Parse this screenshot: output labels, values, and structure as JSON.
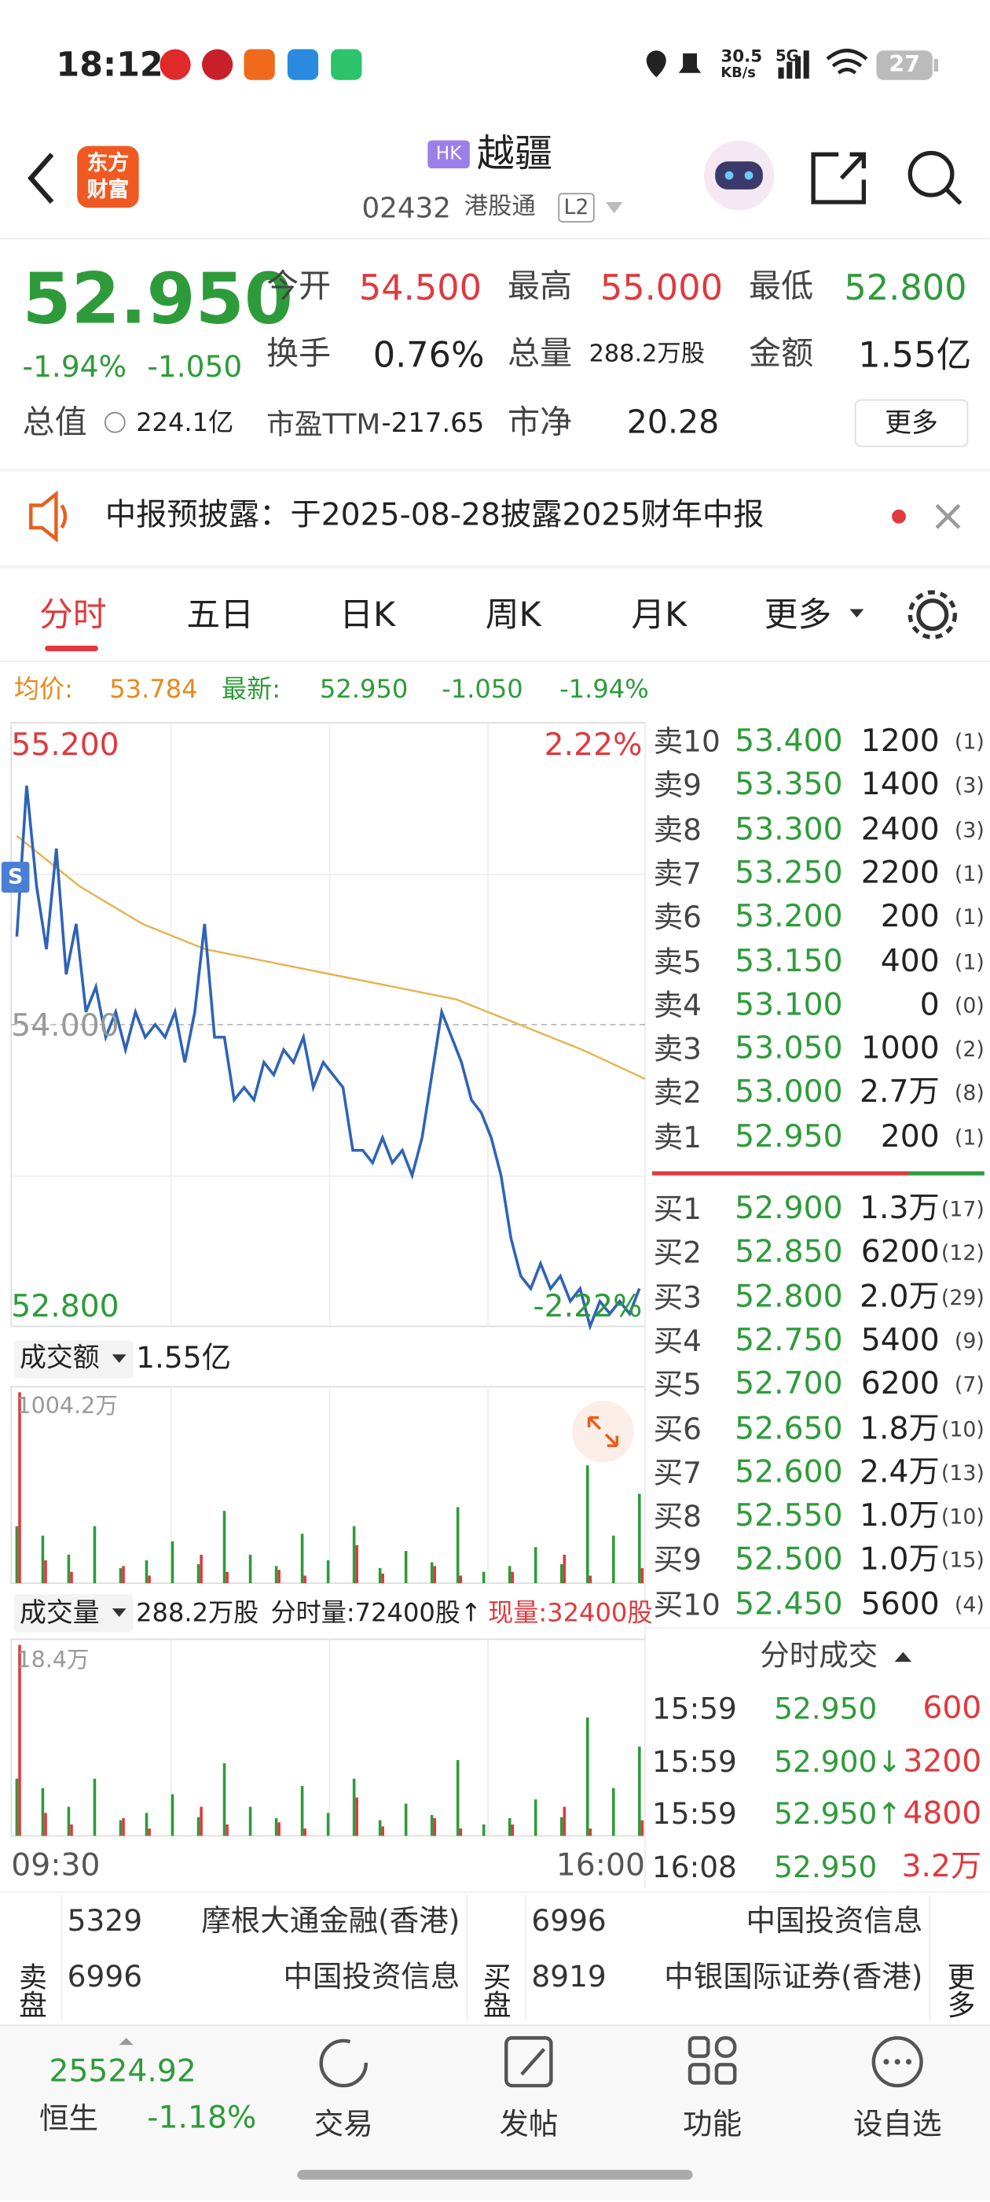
{
  "status_bar": {
    "time": "18:12",
    "net_speed": "30.5",
    "net_unit": "KB/s",
    "signal": "5G",
    "battery": "27"
  },
  "header": {
    "logo": "东方财富",
    "market": "HK",
    "name": "越疆",
    "code": "02432",
    "tags": [
      "港股通",
      "L2"
    ]
  },
  "quote": {
    "price": "52.950",
    "change_pct": "-1.94%",
    "change": "-1.050",
    "fields": [
      {
        "label": "今开",
        "value": "54.500"
      },
      {
        "label": "最高",
        "value": "55.000"
      },
      {
        "label": "最低",
        "value": "52.800"
      },
      {
        "label": "换手",
        "value": "0.76%"
      },
      {
        "label": "总量",
        "value": "288.2万股"
      },
      {
        "label": "金额",
        "value": "1.55亿"
      },
      {
        "label": "总值",
        "value": "224.1亿"
      },
      {
        "label": "市盈TTM",
        "value": "-217.65"
      },
      {
        "label": "市净",
        "value": "20.28"
      }
    ],
    "more": "更多"
  },
  "notice": "中报预披露：于2025-08-28披露2025财年中报",
  "tabs": [
    "分时",
    "五日",
    "日K",
    "周K",
    "月K",
    "更多"
  ],
  "summary": {
    "avg_label": "均价:",
    "avg": "53.784",
    "latest_label": "最新:",
    "latest": "52.950",
    "change": "-1.050",
    "change_pct": "-1.94%"
  },
  "chart": {
    "type": "line",
    "ylim": [
      52.8,
      55.2
    ],
    "yticks": [
      {
        "value": 55.2,
        "label": "55.200"
      },
      {
        "value": 54,
        "label": "54.000"
      },
      {
        "value": 52.8,
        "label": "52.800"
      }
    ],
    "pct_labels": [
      "2.22%",
      "-2.22%"
    ],
    "x_labels": [
      "09:30",
      "16:00"
    ],
    "marker": "S",
    "series": [
      {
        "color": "#2f63b8",
        "values": [
          54.35,
          54.95,
          54.55,
          54.3,
          54.7,
          54.2,
          54.4,
          54.05,
          54.15,
          53.95,
          54.05,
          53.9,
          54.05,
          53.95,
          54.0,
          53.95,
          54.05,
          53.85,
          54.05,
          54.4,
          53.95,
          53.95,
          53.7,
          53.75,
          53.7,
          53.85,
          53.8,
          53.9,
          53.85,
          53.95,
          53.75,
          53.85,
          53.8,
          53.75,
          53.5,
          53.5,
          53.45,
          53.55,
          53.45,
          53.5,
          53.4,
          53.55,
          53.8,
          54.05,
          53.95,
          53.85,
          53.7,
          53.65,
          53.55,
          53.4,
          53.15,
          53.0,
          52.95,
          53.05,
          52.95,
          53.0,
          52.9,
          52.95,
          52.8,
          52.9,
          52.85,
          52.9,
          52.85,
          52.95
        ]
      },
      {
        "color": "#e8b04a",
        "values": [
          54.75,
          54.55,
          54.4,
          54.3,
          54.25,
          54.2,
          54.15,
          54.1,
          54.0,
          53.9,
          53.784
        ]
      }
    ]
  },
  "amount_panel": {
    "selector": "成交额",
    "total": "1.55亿",
    "max_label": "1004.2万",
    "ylim": [
      0,
      1004.2
    ],
    "rise_color": "#e0393e",
    "fall_color": "#2e9b3a",
    "rise_values": [
      1004.2,
      120,
      60,
      0,
      90,
      40,
      0,
      150,
      60,
      0,
      70,
      40,
      0,
      200,
      50,
      0,
      90,
      40,
      0,
      60,
      0,
      150,
      40,
      0,
      80
    ],
    "fall_values": [
      300,
      250,
      150,
      300,
      80,
      120,
      220,
      100,
      380,
      150,
      90,
      260,
      120,
      300,
      80,
      170,
      110,
      400,
      60,
      90,
      190,
      100,
      620,
      250,
      470
    ]
  },
  "volume_panel": {
    "selector": "成交量",
    "total": "288.2万股",
    "period_volume": "分时量:72400股↑",
    "current_volume": "现量:32400股",
    "max_label": "18.4万",
    "ylim": [
      0,
      18.4
    ],
    "rise_values": [
      18.4,
      2.2,
      1.1,
      0,
      1.7,
      0.7,
      0,
      2.8,
      1.1,
      0,
      1.3,
      0.7,
      0,
      3.7,
      0.9,
      0,
      1.7,
      0.7,
      0,
      1.1,
      0,
      2.8,
      0.7,
      0,
      1.5
    ],
    "fall_values": [
      5.5,
      4.6,
      2.8,
      5.5,
      1.5,
      2.2,
      4.0,
      1.8,
      7.0,
      2.8,
      1.7,
      4.8,
      2.2,
      5.5,
      1.5,
      3.1,
      2.0,
      7.3,
      1.1,
      1.7,
      3.5,
      1.8,
      11.4,
      4.6,
      8.6
    ]
  },
  "order_book": {
    "sells": [
      [
        "卖10",
        "53.400",
        "1200",
        "(1)"
      ],
      [
        "卖9",
        "53.350",
        "1400",
        "(3)"
      ],
      [
        "卖8",
        "53.300",
        "2400",
        "(3)"
      ],
      [
        "卖7",
        "53.250",
        "2200",
        "(1)"
      ],
      [
        "卖6",
        "53.200",
        "200",
        "(1)"
      ],
      [
        "卖5",
        "53.150",
        "400",
        "(1)"
      ],
      [
        "卖4",
        "53.100",
        "0",
        "(0)"
      ],
      [
        "卖3",
        "53.050",
        "1000",
        "(2)"
      ],
      [
        "卖2",
        "53.000",
        "2.7万",
        "(8)"
      ],
      [
        "卖1",
        "52.950",
        "200",
        "(1)"
      ]
    ],
    "buys": [
      [
        "买1",
        "52.900",
        "1.3万",
        "(17)"
      ],
      [
        "买2",
        "52.850",
        "6200",
        "(12)"
      ],
      [
        "买3",
        "52.800",
        "2.0万",
        "(29)"
      ],
      [
        "买4",
        "52.750",
        "5400",
        "(9)"
      ],
      [
        "买5",
        "52.700",
        "6200",
        "(7)"
      ],
      [
        "买6",
        "52.650",
        "1.8万",
        "(10)"
      ],
      [
        "买7",
        "52.600",
        "2.4万",
        "(13)"
      ],
      [
        "买8",
        "52.550",
        "1.0万",
        "(10)"
      ],
      [
        "买9",
        "52.500",
        "1.0万",
        "(15)"
      ],
      [
        "买10",
        "52.450",
        "5600",
        "(4)"
      ]
    ]
  },
  "trades": {
    "title": "分时成交",
    "rows": [
      [
        "15:59",
        "52.950",
        "600"
      ],
      [
        "15:59",
        "52.900↓",
        "3200"
      ],
      [
        "15:59",
        "52.950↑",
        "4800"
      ],
      [
        "16:08",
        "52.950",
        "3.2万"
      ]
    ]
  },
  "brokers": {
    "sell_label": "卖盘",
    "buy_label": "买盘",
    "more": "更多",
    "sell_rows": [
      [
        "5329",
        "摩根大通金融(香港)"
      ],
      [
        "6996",
        "中国投资信息"
      ]
    ],
    "buy_rows": [
      [
        "6996",
        "中国投资信息"
      ],
      [
        "8919",
        "中银国际证券(香港)"
      ]
    ]
  },
  "bottom_nav": {
    "index_value": "25524.92",
    "index_name": "恒生",
    "index_change": "-1.18%",
    "items": [
      "交易",
      "发帖",
      "功能",
      "设自选"
    ]
  }
}
